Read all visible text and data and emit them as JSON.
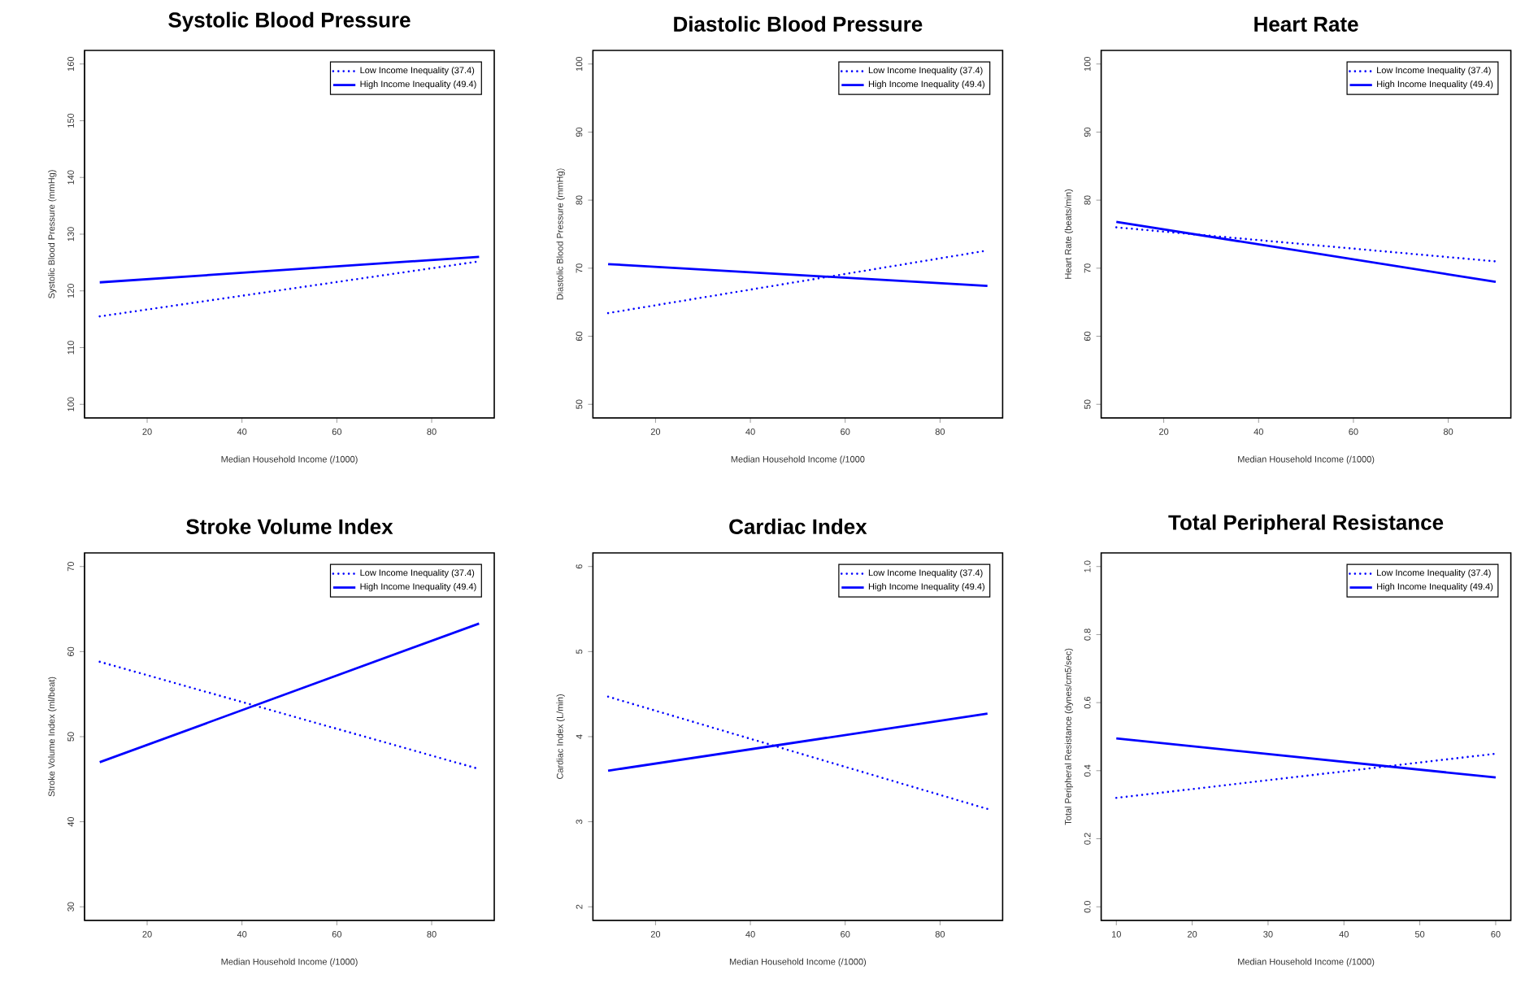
{
  "chart_data": [
    {
      "type": "line",
      "title": "Systolic Blood Pressure",
      "xlabel": "Median Household Income (/1000)",
      "ylabel": "Systolic Blood Pressure (mmHg)",
      "x": [
        10,
        90
      ],
      "xlim": [
        6.8,
        93.2
      ],
      "xticks": [
        20,
        40,
        60,
        80
      ],
      "ylim": [
        97.6,
        162.4
      ],
      "yticks": [
        100,
        110,
        120,
        130,
        140,
        150,
        160
      ],
      "legend": "top right",
      "grid": false,
      "marker": "none",
      "series": [
        {
          "name": "Low Income Inequality (37.4)",
          "color": "#0000ff",
          "line_style": "dotted",
          "values": [
            115.5,
            125.2
          ]
        },
        {
          "name": "High Income Inequality (49.4)",
          "color": "#0000ff",
          "line_style": "solid",
          "values": [
            121.5,
            126.0
          ]
        }
      ]
    },
    {
      "type": "line",
      "title": "Diastolic Blood Pressure",
      "xlabel": "Median Household Income (/1000",
      "ylabel": "Diastolic Blood Pressure (mmHg)",
      "x": [
        10,
        90
      ],
      "xlim": [
        6.8,
        93.2
      ],
      "xticks": [
        20,
        40,
        60,
        80
      ],
      "ylim": [
        48,
        102
      ],
      "yticks": [
        50,
        60,
        70,
        80,
        90,
        100
      ],
      "legend": "top right",
      "grid": false,
      "marker": "none",
      "series": [
        {
          "name": "Low Income Inequality (37.4)",
          "color": "#0000ff",
          "line_style": "dotted",
          "values": [
            63.4,
            72.6
          ]
        },
        {
          "name": "High Income Inequality (49.4)",
          "color": "#0000ff",
          "line_style": "solid",
          "values": [
            70.6,
            67.4
          ]
        }
      ]
    },
    {
      "type": "line",
      "title": "Heart Rate",
      "xlabel": "Median Household Income (/1000)",
      "ylabel": "Heart Rate (beats/min)",
      "x": [
        10,
        90
      ],
      "xlim": [
        6.8,
        93.2
      ],
      "xticks": [
        20,
        40,
        60,
        80
      ],
      "ylim": [
        48,
        102
      ],
      "yticks": [
        50,
        60,
        70,
        80,
        90,
        100
      ],
      "legend": "top right",
      "grid": false,
      "marker": "none",
      "series": [
        {
          "name": "Low Income Inequality (37.4)",
          "color": "#0000ff",
          "line_style": "dotted",
          "values": [
            76.0,
            71.0
          ]
        },
        {
          "name": "High Income Inequality (49.4)",
          "color": "#0000ff",
          "line_style": "solid",
          "values": [
            76.8,
            68.0
          ]
        }
      ]
    },
    {
      "type": "line",
      "title": "Stroke Volume Index",
      "xlabel": "Median Household Income (/1000)",
      "ylabel": "Stroke Volume Index (ml/beat)",
      "x": [
        10,
        90
      ],
      "xlim": [
        6.8,
        93.2
      ],
      "xticks": [
        20,
        40,
        60,
        80
      ],
      "ylim": [
        28.4,
        71.6
      ],
      "yticks": [
        30,
        40,
        50,
        60,
        70
      ],
      "legend": "top right",
      "grid": false,
      "marker": "none",
      "series": [
        {
          "name": "Low Income Inequality (37.4)",
          "color": "#0000ff",
          "line_style": "dotted",
          "values": [
            58.8,
            46.2
          ]
        },
        {
          "name": "High Income Inequality (49.4)",
          "color": "#0000ff",
          "line_style": "solid",
          "values": [
            47.0,
            63.3
          ]
        }
      ]
    },
    {
      "type": "line",
      "title": "Cardiac Index",
      "xlabel": "Median Household Income (/1000)",
      "ylabel": "Cardiac Index (L/min)",
      "x": [
        10,
        90
      ],
      "xlim": [
        6.8,
        93.2
      ],
      "xticks": [
        20,
        40,
        60,
        80
      ],
      "ylim": [
        1.84,
        6.16
      ],
      "yticks": [
        2,
        3,
        4,
        5,
        6
      ],
      "legend": "top right",
      "grid": false,
      "marker": "none",
      "series": [
        {
          "name": "Low Income Inequality (37.4)",
          "color": "#0000ff",
          "line_style": "dotted",
          "values": [
            4.47,
            3.15
          ]
        },
        {
          "name": "High Income Inequality (49.4)",
          "color": "#0000ff",
          "line_style": "solid",
          "values": [
            3.6,
            4.27
          ]
        }
      ]
    },
    {
      "type": "line",
      "title": "Total Peripheral Resistance",
      "xlabel": "Median Household Income (/1000)",
      "ylabel": "Total Peripheral Resistance (dynes/cm5/sec)",
      "x": [
        10,
        60
      ],
      "xlim": [
        8,
        62
      ],
      "xticks": [
        10,
        20,
        30,
        40,
        50,
        60
      ],
      "ylim": [
        -0.04,
        1.04
      ],
      "yticks": [
        {
          "value": 0,
          "label": "0.0"
        },
        0.2,
        0.4,
        0.6,
        0.8,
        {
          "value": 1,
          "label": "1.0"
        }
      ],
      "legend": "top right",
      "grid": false,
      "marker": "none",
      "series": [
        {
          "name": "Low Income Inequality (37.4)",
          "color": "#0000ff",
          "line_style": "dotted",
          "values": [
            0.32,
            0.45
          ]
        },
        {
          "name": "High Income Inequality (49.4)",
          "color": "#0000ff",
          "line_style": "solid",
          "values": [
            0.495,
            0.38
          ]
        }
      ]
    }
  ]
}
